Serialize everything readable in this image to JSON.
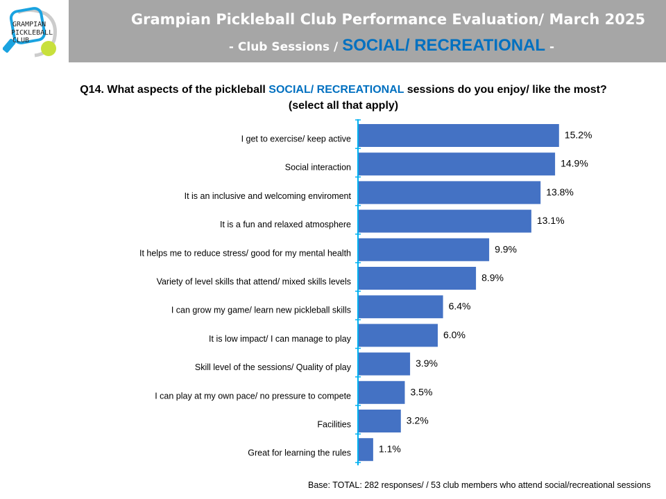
{
  "logo": {
    "text": [
      "GRAMPIAN",
      "PICKLEBALL",
      "CLUB"
    ]
  },
  "header": {
    "title": "Grampian Pickleball Club Performance Evaluation/ March 2025",
    "subtitle_prefix": "- Club Sessions / ",
    "subtitle_highlight": "SOCIAL/ RECREATIONAL",
    "subtitle_suffix": " -"
  },
  "question": {
    "prefix": "Q14. What aspects of the pickleball ",
    "highlight": "SOCIAL/ RECREATIONAL",
    "suffix": " sessions do you enjoy/ like the most?",
    "line2": "(select all that apply)"
  },
  "colors": {
    "bar": "#4472c4",
    "axis": "#00b0f0",
    "header": "#a6a6a6",
    "accent": "#0070c0"
  },
  "chart_data": {
    "type": "bar",
    "orientation": "horizontal",
    "categories": [
      "I get to exercise/ keep active",
      "Social interaction",
      "It is an inclusive and welcoming enviroment",
      "It is a fun and relaxed atmosphere",
      "It helps me to reduce stress/ good for my mental health",
      "Variety of level skills that attend/ mixed skills levels",
      "I can grow my game/ learn new pickleball skills",
      "It is low impact/ I can manage to play",
      "Skill level of the sessions/ Quality of play",
      "I can play at my own pace/ no pressure to compete",
      "Facilities",
      "Great for learning the rules"
    ],
    "values": [
      15.2,
      14.9,
      13.8,
      13.1,
      9.9,
      8.9,
      6.4,
      6.0,
      3.9,
      3.5,
      3.2,
      1.1
    ],
    "labels": [
      "15.2%",
      "14.9%",
      "13.8%",
      "13.1%",
      "9.9%",
      "8.9%",
      "6.4%",
      "6.0%",
      "3.9%",
      "3.5%",
      "3.2%",
      "1.1%"
    ],
    "unit": "%",
    "xlim": [
      0,
      20
    ],
    "grid": false
  },
  "base": "Base: TOTAL: 282 responses/ / 53 club members who attend social/recreational sessions"
}
